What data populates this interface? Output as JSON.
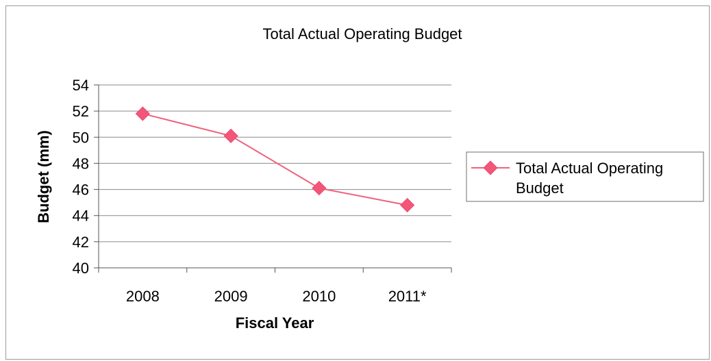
{
  "chart_data": {
    "type": "line",
    "title": "Total Actual Operating Budget",
    "xlabel": "Fiscal Year",
    "ylabel": "Budget (mm)",
    "categories": [
      "2008",
      "2009",
      "2010",
      "2011*"
    ],
    "series": [
      {
        "name": "Total Actual Operating Budget",
        "values": [
          51.8,
          50.1,
          46.1,
          44.8
        ]
      }
    ],
    "ylim": [
      40,
      54
    ],
    "yticks": [
      40,
      42,
      44,
      46,
      48,
      50,
      52,
      54
    ],
    "grid": true,
    "legend_position": "right",
    "colors": {
      "series": "#f0607d",
      "marker": "#f2577a",
      "grid": "#8a8a8a"
    }
  },
  "legend": {
    "line1": "Total Actual Operating",
    "line2": "Budget"
  }
}
